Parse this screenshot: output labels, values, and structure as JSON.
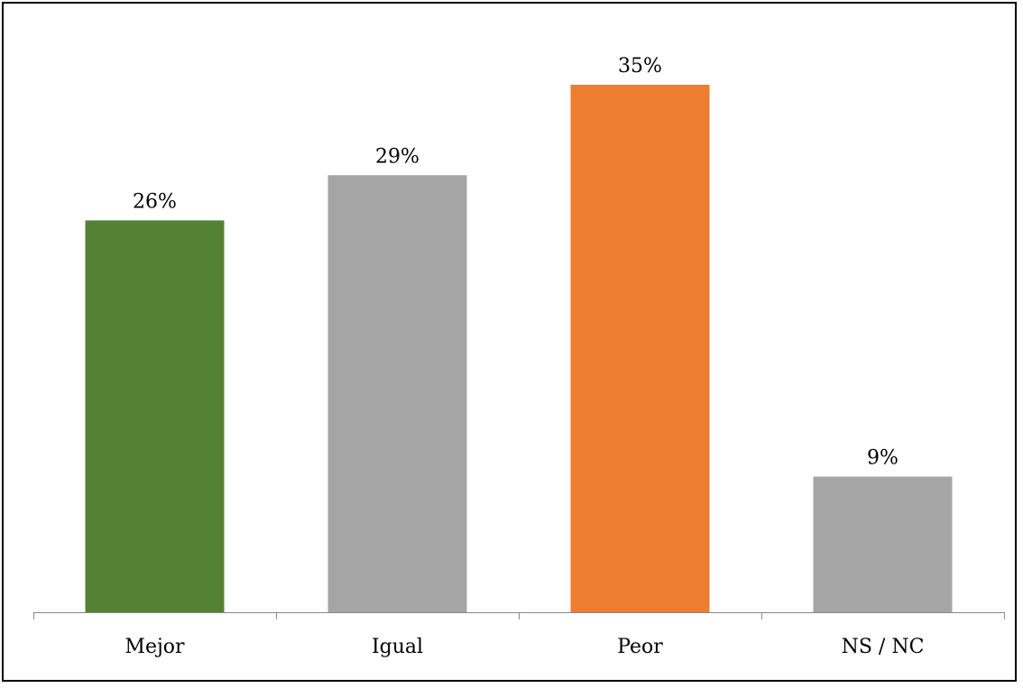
{
  "chart_data": {
    "type": "bar",
    "categories": [
      "Mejor",
      "Igual",
      "Peor",
      "NS / NC"
    ],
    "values": [
      26,
      29,
      35,
      9
    ],
    "data_labels": [
      "26%",
      "29%",
      "35%",
      "9%"
    ],
    "colors": [
      "#548235",
      "#A5A5A5",
      "#ED7D31",
      "#A5A5A5"
    ],
    "title": "",
    "xlabel": "",
    "ylabel": "",
    "ylim": [
      0,
      35
    ],
    "grid": false,
    "legend": "none"
  }
}
